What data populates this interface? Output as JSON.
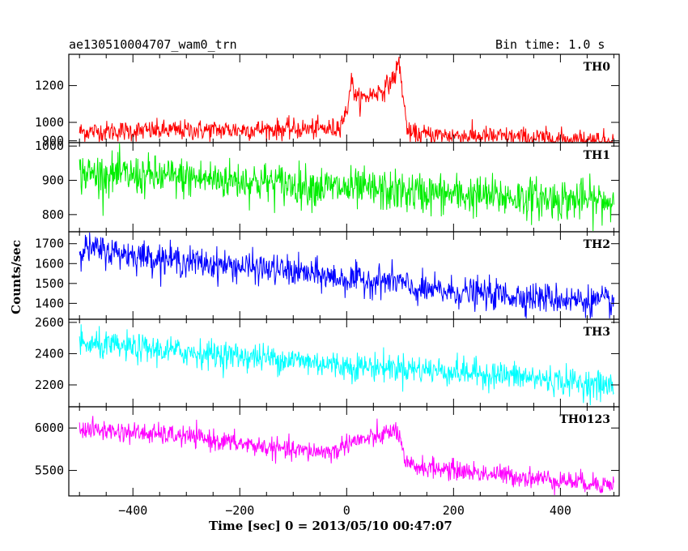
{
  "header": {
    "title": "ae130510004707_wam0_trn",
    "bin_time": "Bin time: 1.0 s"
  },
  "axes": {
    "xlabel": "Time [sec] 0 = 2013/05/10 00:47:07",
    "ylabel": "Counts/sec"
  },
  "chart_data": {
    "type": "line",
    "title": "ae130510004707_wam0_trn",
    "xlabel": "Time [sec] 0 = 2013/05/10 00:47:07",
    "ylabel": "Counts/sec",
    "xlim": [
      -520,
      510
    ],
    "x_ticks": [
      -400,
      -200,
      0,
      200,
      400
    ],
    "x_tick_labels": [
      "−400",
      "−200",
      "0",
      "200",
      "400"
    ],
    "panels": [
      {
        "name": "TH0",
        "color": "#ff0000",
        "ylim": [
          890,
          1370
        ],
        "y_ticks": [
          900,
          1000,
          1200
        ],
        "y_tick_labels": [
          "900",
          "1000",
          "1200"
        ],
        "trend": [
          [
            -500,
            950
          ],
          [
            -200,
            960
          ],
          [
            -20,
            965
          ],
          [
            0,
            1050
          ],
          [
            8,
            1230
          ],
          [
            20,
            1120
          ],
          [
            45,
            1150
          ],
          [
            70,
            1180
          ],
          [
            90,
            1250
          ],
          [
            98,
            1330
          ],
          [
            110,
            1030
          ],
          [
            116,
            935
          ],
          [
            300,
            920
          ],
          [
            500,
            900
          ]
        ],
        "noise_sd": 28
      },
      {
        "name": "TH1",
        "color": "#00ee00",
        "ylim": [
          750,
          1010
        ],
        "y_ticks": [
          800,
          900,
          1000
        ],
        "y_tick_labels": [
          "800",
          "900",
          "1000"
        ],
        "trend": [
          [
            -500,
            920
          ],
          [
            -200,
            900
          ],
          [
            0,
            875
          ],
          [
            200,
            858
          ],
          [
            500,
            838
          ]
        ],
        "noise_sd": 30
      },
      {
        "name": "TH2",
        "color": "#0000ff",
        "ylim": [
          1320,
          1760
        ],
        "y_ticks": [
          1400,
          1500,
          1600,
          1700
        ],
        "y_tick_labels": [
          "1400",
          "1500",
          "1600",
          "1700"
        ],
        "trend": [
          [
            -500,
            1680
          ],
          [
            -300,
            1610
          ],
          [
            -100,
            1560
          ],
          [
            0,
            1520
          ],
          [
            100,
            1510
          ],
          [
            120,
            1470
          ],
          [
            300,
            1440
          ],
          [
            500,
            1405
          ]
        ],
        "noise_sd": 38
      },
      {
        "name": "TH3",
        "color": "#00ffff",
        "ylim": [
          2060,
          2620
        ],
        "y_ticks": [
          2200,
          2400,
          2600
        ],
        "y_tick_labels": [
          "2200",
          "2400",
          "2600"
        ],
        "trend": [
          [
            -500,
            2460
          ],
          [
            -300,
            2410
          ],
          [
            -100,
            2360
          ],
          [
            0,
            2320
          ],
          [
            100,
            2310
          ],
          [
            300,
            2260
          ],
          [
            500,
            2190
          ]
        ],
        "noise_sd": 45
      },
      {
        "name": "TH0123",
        "color": "#ff00ff",
        "ylim": [
          5200,
          6250
        ],
        "y_ticks": [
          5500,
          6000
        ],
        "y_tick_labels": [
          "5500",
          "6000"
        ],
        "trend": [
          [
            -500,
            5990
          ],
          [
            -300,
            5900
          ],
          [
            -100,
            5730
          ],
          [
            -20,
            5720
          ],
          [
            0,
            5830
          ],
          [
            50,
            5880
          ],
          [
            95,
            5980
          ],
          [
            110,
            5560
          ],
          [
            300,
            5440
          ],
          [
            500,
            5330
          ]
        ],
        "noise_sd": 60
      }
    ]
  }
}
